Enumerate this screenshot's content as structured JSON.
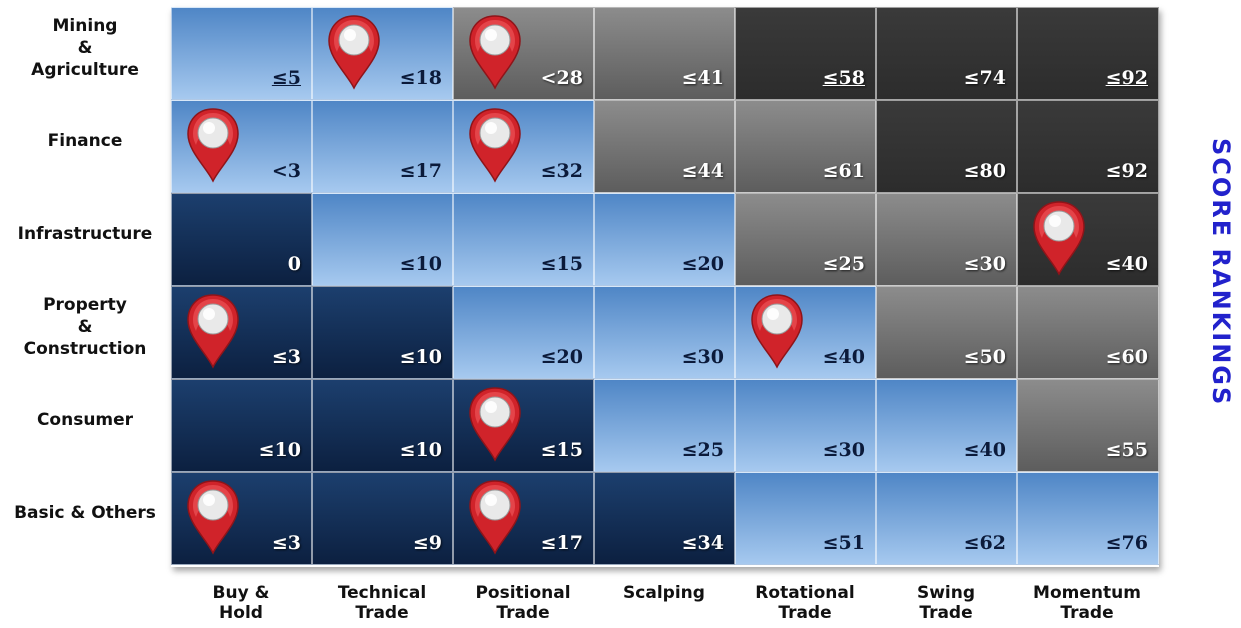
{
  "side_title": "SCORE RANKINGS",
  "colors": {
    "light": "#7fa9dc",
    "dark": "#14305a",
    "gray": "#767676",
    "black": "#333333",
    "pin": "#d0232a",
    "title": "#2222cc"
  },
  "rows": [
    {
      "label_lines": [
        "Mining",
        "&",
        "Agriculture"
      ],
      "cells": [
        {
          "value": "≤5",
          "tone": "light",
          "pin": false,
          "underline": true
        },
        {
          "value": "≤18",
          "tone": "light",
          "pin": true,
          "underline": false
        },
        {
          "value": "<28",
          "tone": "gray",
          "pin": true,
          "underline": false
        },
        {
          "value": "≤41",
          "tone": "gray",
          "pin": false,
          "underline": false
        },
        {
          "value": "≤58",
          "tone": "black",
          "pin": false,
          "underline": true
        },
        {
          "value": "≤74",
          "tone": "black",
          "pin": false,
          "underline": false
        },
        {
          "value": "≤92",
          "tone": "black",
          "pin": false,
          "underline": true
        }
      ]
    },
    {
      "label_lines": [
        "Finance"
      ],
      "cells": [
        {
          "value": "<3",
          "tone": "light",
          "pin": true,
          "underline": false
        },
        {
          "value": "≤17",
          "tone": "light",
          "pin": false,
          "underline": false
        },
        {
          "value": "≤32",
          "tone": "light",
          "pin": true,
          "underline": false
        },
        {
          "value": "≤44",
          "tone": "gray",
          "pin": false,
          "underline": false
        },
        {
          "value": "≤61",
          "tone": "gray",
          "pin": false,
          "underline": false
        },
        {
          "value": "≤80",
          "tone": "black",
          "pin": false,
          "underline": false
        },
        {
          "value": "≤92",
          "tone": "black",
          "pin": false,
          "underline": false
        }
      ]
    },
    {
      "label_lines": [
        "Infrastructure"
      ],
      "cells": [
        {
          "value": "0",
          "tone": "dark",
          "pin": false,
          "underline": false
        },
        {
          "value": "≤10",
          "tone": "light",
          "pin": false,
          "underline": false
        },
        {
          "value": "≤15",
          "tone": "light",
          "pin": false,
          "underline": false
        },
        {
          "value": "≤20",
          "tone": "light",
          "pin": false,
          "underline": false
        },
        {
          "value": "≤25",
          "tone": "gray",
          "pin": false,
          "underline": false
        },
        {
          "value": "≤30",
          "tone": "gray",
          "pin": false,
          "underline": false
        },
        {
          "value": "≤40",
          "tone": "black",
          "pin": true,
          "underline": false
        }
      ]
    },
    {
      "label_lines": [
        "Property",
        "&",
        "Construction"
      ],
      "cells": [
        {
          "value": "≤3",
          "tone": "dark",
          "pin": true,
          "underline": false
        },
        {
          "value": "≤10",
          "tone": "dark",
          "pin": false,
          "underline": false
        },
        {
          "value": "≤20",
          "tone": "light",
          "pin": false,
          "underline": false
        },
        {
          "value": "≤30",
          "tone": "light",
          "pin": false,
          "underline": false
        },
        {
          "value": "≤40",
          "tone": "light",
          "pin": true,
          "underline": false
        },
        {
          "value": "≤50",
          "tone": "gray",
          "pin": false,
          "underline": false
        },
        {
          "value": "≤60",
          "tone": "gray",
          "pin": false,
          "underline": false
        }
      ]
    },
    {
      "label_lines": [
        "Consumer"
      ],
      "cells": [
        {
          "value": "≤10",
          "tone": "dark",
          "pin": false,
          "underline": false
        },
        {
          "value": "≤10",
          "tone": "dark",
          "pin": false,
          "underline": false
        },
        {
          "value": "≤15",
          "tone": "dark",
          "pin": true,
          "underline": false
        },
        {
          "value": "≤25",
          "tone": "light",
          "pin": false,
          "underline": false
        },
        {
          "value": "≤30",
          "tone": "light",
          "pin": false,
          "underline": false
        },
        {
          "value": "≤40",
          "tone": "light",
          "pin": false,
          "underline": false
        },
        {
          "value": "≤55",
          "tone": "gray",
          "pin": false,
          "underline": false
        }
      ]
    },
    {
      "label_lines": [
        "Basic & Others"
      ],
      "cells": [
        {
          "value": "≤3",
          "tone": "dark",
          "pin": true,
          "underline": false
        },
        {
          "value": "≤9",
          "tone": "dark",
          "pin": false,
          "underline": false
        },
        {
          "value": "≤17",
          "tone": "dark",
          "pin": true,
          "underline": false
        },
        {
          "value": "≤34",
          "tone": "dark",
          "pin": false,
          "underline": false
        },
        {
          "value": "≤51",
          "tone": "light",
          "pin": false,
          "underline": false
        },
        {
          "value": "≤62",
          "tone": "light",
          "pin": false,
          "underline": false
        },
        {
          "value": "≤76",
          "tone": "light",
          "pin": false,
          "underline": false
        }
      ]
    }
  ],
  "columns": [
    [
      "Buy &",
      "Hold"
    ],
    [
      "Technical",
      "Trade"
    ],
    [
      "Positional",
      "Trade"
    ],
    [
      "Scalping"
    ],
    [
      "Rotational",
      "Trade"
    ],
    [
      "Swing",
      "Trade"
    ],
    [
      "Momentum",
      "Trade"
    ]
  ]
}
